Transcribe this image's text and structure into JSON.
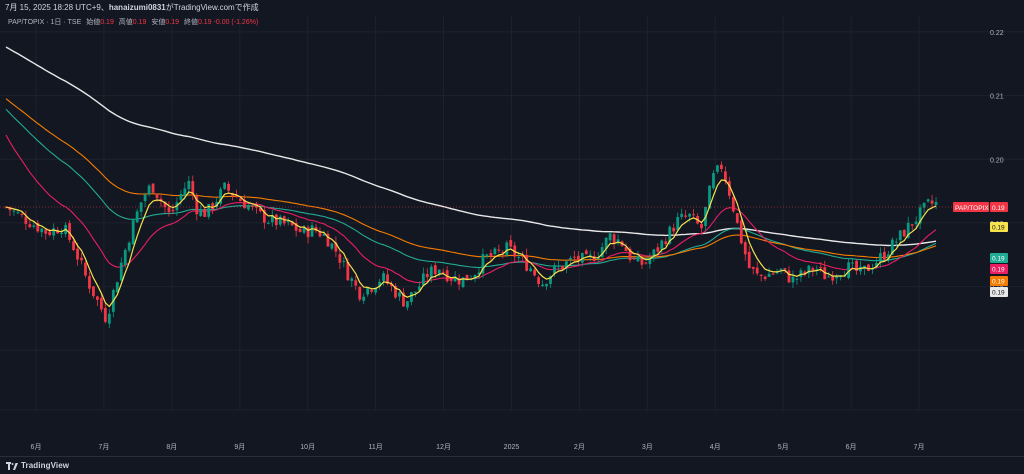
{
  "header": {
    "date_text": "7月 15, 2025 18:28 UTC+9",
    "separator": "、",
    "author": "hanaizumi0831",
    "suffix": "がTradingView.comで作成"
  },
  "legend": {
    "symbol": "PAP/TOPIX · 1日 · TSE",
    "open_label": "始値",
    "open": "0.19",
    "high_label": "高値",
    "high": "0.19",
    "low_label": "安値",
    "low": "0.19",
    "close_label": "終値",
    "close": "0.19",
    "change": "-0.00 (-1.26%)"
  },
  "footer": {
    "brand": "TradingView"
  },
  "colors": {
    "background": "#131722",
    "grid": "#1e222d",
    "up": "#089981",
    "down": "#f23645",
    "ma_fast": "#f7e34c",
    "ma_pink": "#e91e63",
    "ma_teal": "#22ab94",
    "ma_orange": "#f57c00",
    "ma_white": "#e8e8e8"
  },
  "chart_data": {
    "type": "candlestick",
    "symbol": "PAP/TOPIX",
    "interval": "1日",
    "y_axis": {
      "ticks": [
        0.18,
        0.19,
        0.2,
        0.21,
        0.22
      ],
      "tick_labels": [
        "0.18",
        "0.19",
        "0.20",
        "0.21",
        "0.22"
      ],
      "range": [
        0.1625,
        0.2225
      ]
    },
    "x_axis": {
      "tick_labels": [
        "6月",
        "7月",
        "8月",
        "9月",
        "10月",
        "11月",
        "12月",
        "2025",
        "2月",
        "3月",
        "4月",
        "5月",
        "6月",
        "7月"
      ]
    },
    "price_line": {
      "label": "PAP/TOPIX",
      "value": "0.19",
      "price": 0.1925
    },
    "value_badges": [
      {
        "value": "0.19",
        "color": "#f7e34c"
      },
      {
        "value": "0.19",
        "color": "#22ab94"
      },
      {
        "value": "0.19",
        "color": "#e91e63"
      },
      {
        "value": "0.19",
        "color": "#f57c00"
      },
      {
        "value": "0.19",
        "color": "#e8e8e8"
      }
    ],
    "close_series": [
      {
        "x": 0.0,
        "y": 0.1925
      },
      {
        "x": 0.9,
        "y": 0.1905
      },
      {
        "x": 1.8,
        "y": 0.1885
      },
      {
        "x": 2.5,
        "y": 0.1895
      },
      {
        "x": 3.0,
        "y": 0.186
      },
      {
        "x": 3.5,
        "y": 0.1815
      },
      {
        "x": 4.0,
        "y": 0.1778
      },
      {
        "x": 4.4,
        "y": 0.175
      },
      {
        "x": 5.0,
        "y": 0.183
      },
      {
        "x": 5.5,
        "y": 0.189
      },
      {
        "x": 6.0,
        "y": 0.194
      },
      {
        "x": 6.4,
        "y": 0.196
      },
      {
        "x": 6.8,
        "y": 0.1935
      },
      {
        "x": 7.2,
        "y": 0.191
      },
      {
        "x": 7.6,
        "y": 0.194
      },
      {
        "x": 8.0,
        "y": 0.1965
      },
      {
        "x": 8.4,
        "y": 0.192
      },
      {
        "x": 8.8,
        "y": 0.1915
      },
      {
        "x": 9.2,
        "y": 0.1935
      },
      {
        "x": 9.6,
        "y": 0.1955
      },
      {
        "x": 10.0,
        "y": 0.1945
      },
      {
        "x": 10.5,
        "y": 0.193
      },
      {
        "x": 11.0,
        "y": 0.1915
      },
      {
        "x": 11.5,
        "y": 0.1905
      },
      {
        "x": 12.0,
        "y": 0.19
      },
      {
        "x": 12.5,
        "y": 0.1895
      },
      {
        "x": 13.0,
        "y": 0.1885
      },
      {
        "x": 13.5,
        "y": 0.189
      },
      {
        "x": 14.0,
        "y": 0.188
      },
      {
        "x": 14.5,
        "y": 0.1855
      },
      {
        "x": 15.0,
        "y": 0.182
      },
      {
        "x": 15.5,
        "y": 0.179
      },
      {
        "x": 16.0,
        "y": 0.18
      },
      {
        "x": 16.5,
        "y": 0.1815
      },
      {
        "x": 17.0,
        "y": 0.1795
      },
      {
        "x": 17.5,
        "y": 0.1775
      },
      {
        "x": 18.0,
        "y": 0.1795
      },
      {
        "x": 18.5,
        "y": 0.182
      },
      {
        "x": 19.0,
        "y": 0.183
      },
      {
        "x": 19.5,
        "y": 0.1815
      },
      {
        "x": 20.0,
        "y": 0.181
      },
      {
        "x": 20.5,
        "y": 0.182
      },
      {
        "x": 21.0,
        "y": 0.1845
      },
      {
        "x": 21.5,
        "y": 0.185
      },
      {
        "x": 22.0,
        "y": 0.186
      },
      {
        "x": 22.5,
        "y": 0.1845
      },
      {
        "x": 23.0,
        "y": 0.183
      },
      {
        "x": 23.5,
        "y": 0.1805
      },
      {
        "x": 24.0,
        "y": 0.1825
      },
      {
        "x": 24.5,
        "y": 0.1835
      },
      {
        "x": 25.0,
        "y": 0.1845
      },
      {
        "x": 25.5,
        "y": 0.184
      },
      {
        "x": 26.0,
        "y": 0.1855
      },
      {
        "x": 26.5,
        "y": 0.188
      },
      {
        "x": 27.0,
        "y": 0.187
      },
      {
        "x": 27.5,
        "y": 0.184
      },
      {
        "x": 28.0,
        "y": 0.1835
      },
      {
        "x": 28.5,
        "y": 0.1855
      },
      {
        "x": 29.0,
        "y": 0.188
      },
      {
        "x": 29.5,
        "y": 0.1905
      },
      {
        "x": 30.0,
        "y": 0.191
      },
      {
        "x": 30.5,
        "y": 0.189
      },
      {
        "x": 31.0,
        "y": 0.197
      },
      {
        "x": 31.4,
        "y": 0.199
      },
      {
        "x": 31.8,
        "y": 0.194
      },
      {
        "x": 32.2,
        "y": 0.188
      },
      {
        "x": 32.6,
        "y": 0.183
      },
      {
        "x": 33.0,
        "y": 0.1815
      },
      {
        "x": 33.5,
        "y": 0.182
      },
      {
        "x": 34.0,
        "y": 0.1825
      },
      {
        "x": 34.5,
        "y": 0.181
      },
      {
        "x": 35.0,
        "y": 0.182
      },
      {
        "x": 35.5,
        "y": 0.183
      },
      {
        "x": 36.0,
        "y": 0.1815
      },
      {
        "x": 36.5,
        "y": 0.1825
      },
      {
        "x": 37.0,
        "y": 0.183
      },
      {
        "x": 37.5,
        "y": 0.182
      },
      {
        "x": 38.0,
        "y": 0.1835
      },
      {
        "x": 38.5,
        "y": 0.185
      },
      {
        "x": 39.0,
        "y": 0.187
      },
      {
        "x": 39.5,
        "y": 0.189
      },
      {
        "x": 40.0,
        "y": 0.191
      },
      {
        "x": 40.5,
        "y": 0.193
      }
    ]
  }
}
